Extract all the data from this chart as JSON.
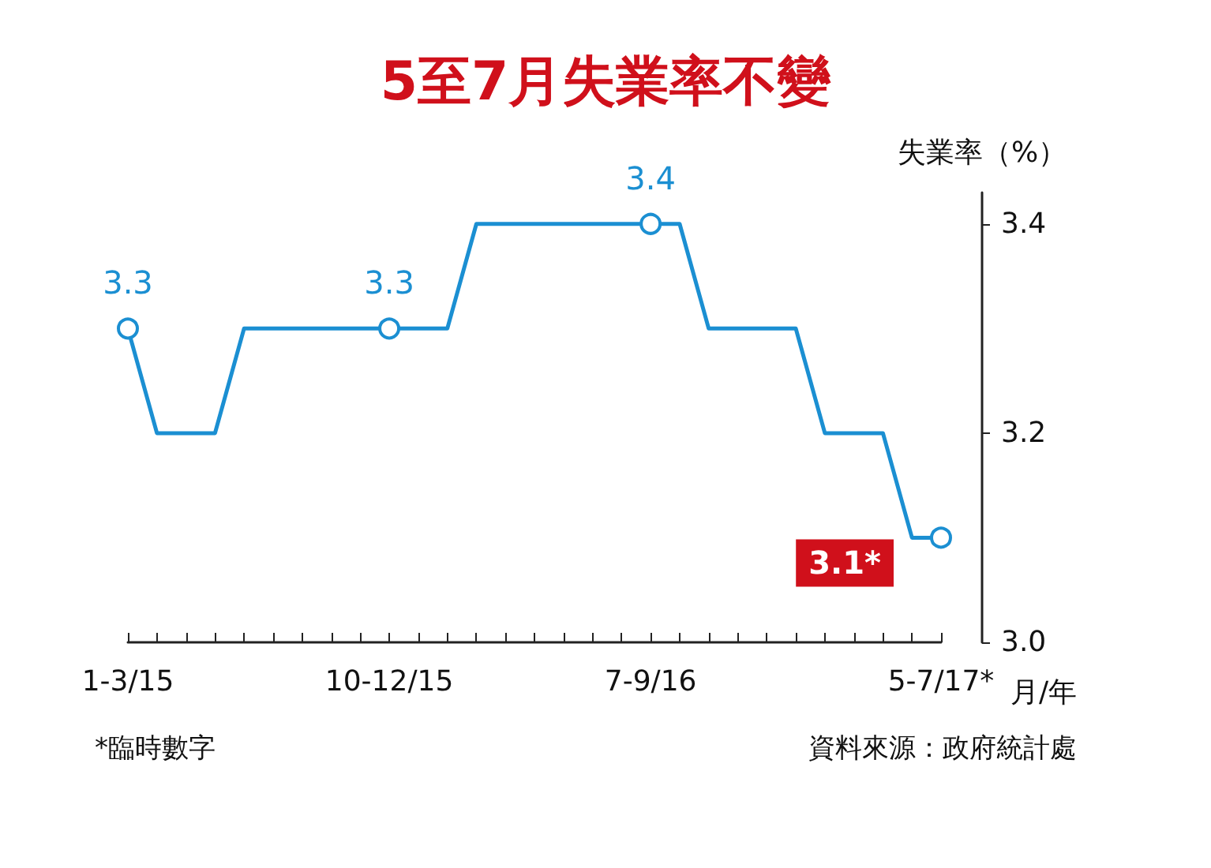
{
  "chart_data": {
    "type": "line",
    "title": "5至7月失業率不變",
    "categories": [
      "1-3/15",
      null,
      null,
      null,
      null,
      null,
      null,
      null,
      null,
      "10-12/15",
      null,
      null,
      null,
      null,
      null,
      null,
      null,
      null,
      "7-9/16",
      null,
      null,
      null,
      null,
      null,
      null,
      null,
      null,
      null,
      "5-7/17*"
    ],
    "series": [
      {
        "color": "#1b8fd2",
        "values": [
          3.3,
          3.2,
          3.2,
          3.2,
          3.3,
          3.3,
          3.3,
          3.3,
          3.3,
          3.3,
          3.3,
          3.3,
          3.4,
          3.4,
          3.4,
          3.4,
          3.4,
          3.4,
          3.4,
          3.4,
          3.3,
          3.3,
          3.3,
          3.3,
          3.2,
          3.2,
          3.2,
          3.1,
          3.1
        ],
        "value_labels": [
          "3.3",
          null,
          null,
          null,
          null,
          null,
          null,
          null,
          null,
          "3.3",
          null,
          null,
          null,
          null,
          null,
          null,
          null,
          null,
          "3.4",
          null,
          null,
          null,
          null,
          null,
          null,
          null,
          null,
          null,
          "3.1*"
        ]
      }
    ],
    "ylim": [
      3.0,
      3.43
    ],
    "yticks": [
      {
        "value": 3.0,
        "label": "3.0"
      },
      3.2,
      3.4
    ],
    "ylabel": "失業率（%）",
    "xlabel": "月/年",
    "line_style": "solid",
    "grid": false,
    "annotations": [
      "*臨時數字",
      "資料來源：政府統計處"
    ]
  }
}
